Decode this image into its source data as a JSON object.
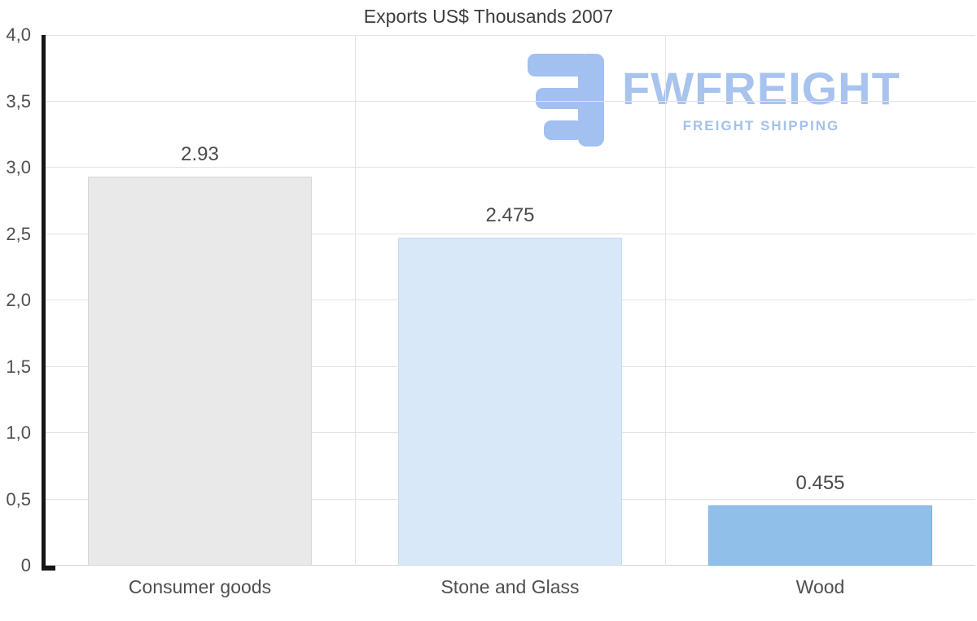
{
  "chart_data": {
    "type": "bar",
    "title": "Exports US$ Thousands 2007",
    "categories": [
      "Consumer goods",
      "Stone and Glass",
      "Wood"
    ],
    "values": [
      2.93,
      2.475,
      0.455
    ],
    "value_labels": [
      "2.93",
      "2.475",
      "0.455"
    ],
    "bar_colors": [
      "#e9e9e9",
      "#d9e8f8",
      "#90c0ea"
    ],
    "bar_border_colors": [
      "#d7d7d7",
      "#c6dbf0",
      "#7eb1dd"
    ],
    "xlabel": "",
    "ylabel": "",
    "ylim": [
      0,
      4
    ],
    "y_tick_step": 0.5,
    "y_tick_labels": [
      "0",
      "0,5",
      "1,0",
      "1,5",
      "2,0",
      "2,5",
      "3,0",
      "3,5",
      "4,0"
    ],
    "grid": true,
    "legend": false
  },
  "logo": {
    "name": "FWFREIGHT",
    "subtitle": "FREIGHT SHIPPING",
    "color": "#a7c3ee"
  }
}
